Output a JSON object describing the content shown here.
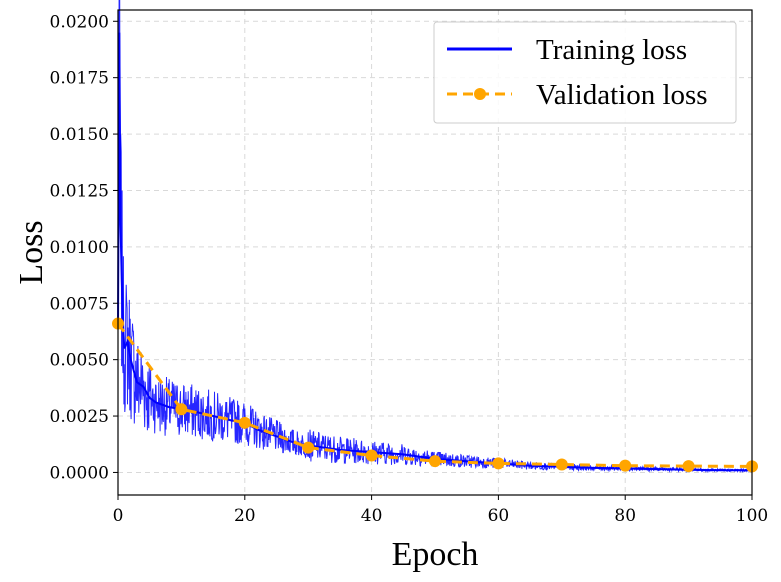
{
  "chart_data": {
    "type": "line",
    "title": "",
    "xlabel": "Epoch",
    "ylabel": "Loss",
    "xlim": [
      0,
      100
    ],
    "ylim": [
      -0.001,
      0.0205
    ],
    "x_ticks": [
      0,
      20,
      40,
      60,
      80,
      100
    ],
    "x_tick_labels": [
      "0",
      "20",
      "40",
      "60",
      "80",
      "100"
    ],
    "y_ticks": [
      0.0,
      0.0025,
      0.005,
      0.0075,
      0.01,
      0.0125,
      0.015,
      0.0175,
      0.02
    ],
    "y_tick_labels": [
      "0.0000",
      "0.0025",
      "0.0050",
      "0.0075",
      "0.0100",
      "0.0125",
      "0.0150",
      "0.0175",
      "0.0200"
    ],
    "grid": true,
    "legend_position": "top-right",
    "series": [
      {
        "name": "Training loss",
        "color": "#0000ff",
        "style": "solid",
        "x": [
          0,
          0.2,
          0.4,
          0.6,
          0.8,
          1,
          1.5,
          2,
          2.5,
          3,
          4,
          5,
          6,
          8,
          10,
          12,
          15,
          18,
          20,
          22,
          25,
          28,
          30,
          35,
          40,
          45,
          50,
          55,
          60,
          65,
          70,
          75,
          80,
          85,
          90,
          95,
          100
        ],
        "y": [
          0.0065,
          0.0195,
          0.011,
          0.0085,
          0.0065,
          0.0055,
          0.0058,
          0.005,
          0.0045,
          0.004,
          0.0038,
          0.0033,
          0.0031,
          0.0029,
          0.0028,
          0.0027,
          0.0025,
          0.0023,
          0.0022,
          0.0019,
          0.0016,
          0.0013,
          0.0012,
          0.001,
          0.0009,
          0.0008,
          0.0006,
          0.0005,
          0.0004,
          0.0003,
          0.00025,
          0.0002,
          0.00018,
          0.00015,
          0.00012,
          0.0001,
          0.0001
        ]
      },
      {
        "name": "Validation loss",
        "color": "#ffa500",
        "style": "dashed",
        "marker": "circle",
        "x": [
          0,
          10,
          20,
          30,
          40,
          50,
          60,
          70,
          80,
          90,
          100
        ],
        "y": [
          0.0066,
          0.0028,
          0.0022,
          0.0011,
          0.00075,
          0.0005,
          0.0004,
          0.00035,
          0.0003,
          0.00028,
          0.00027
        ]
      }
    ]
  }
}
